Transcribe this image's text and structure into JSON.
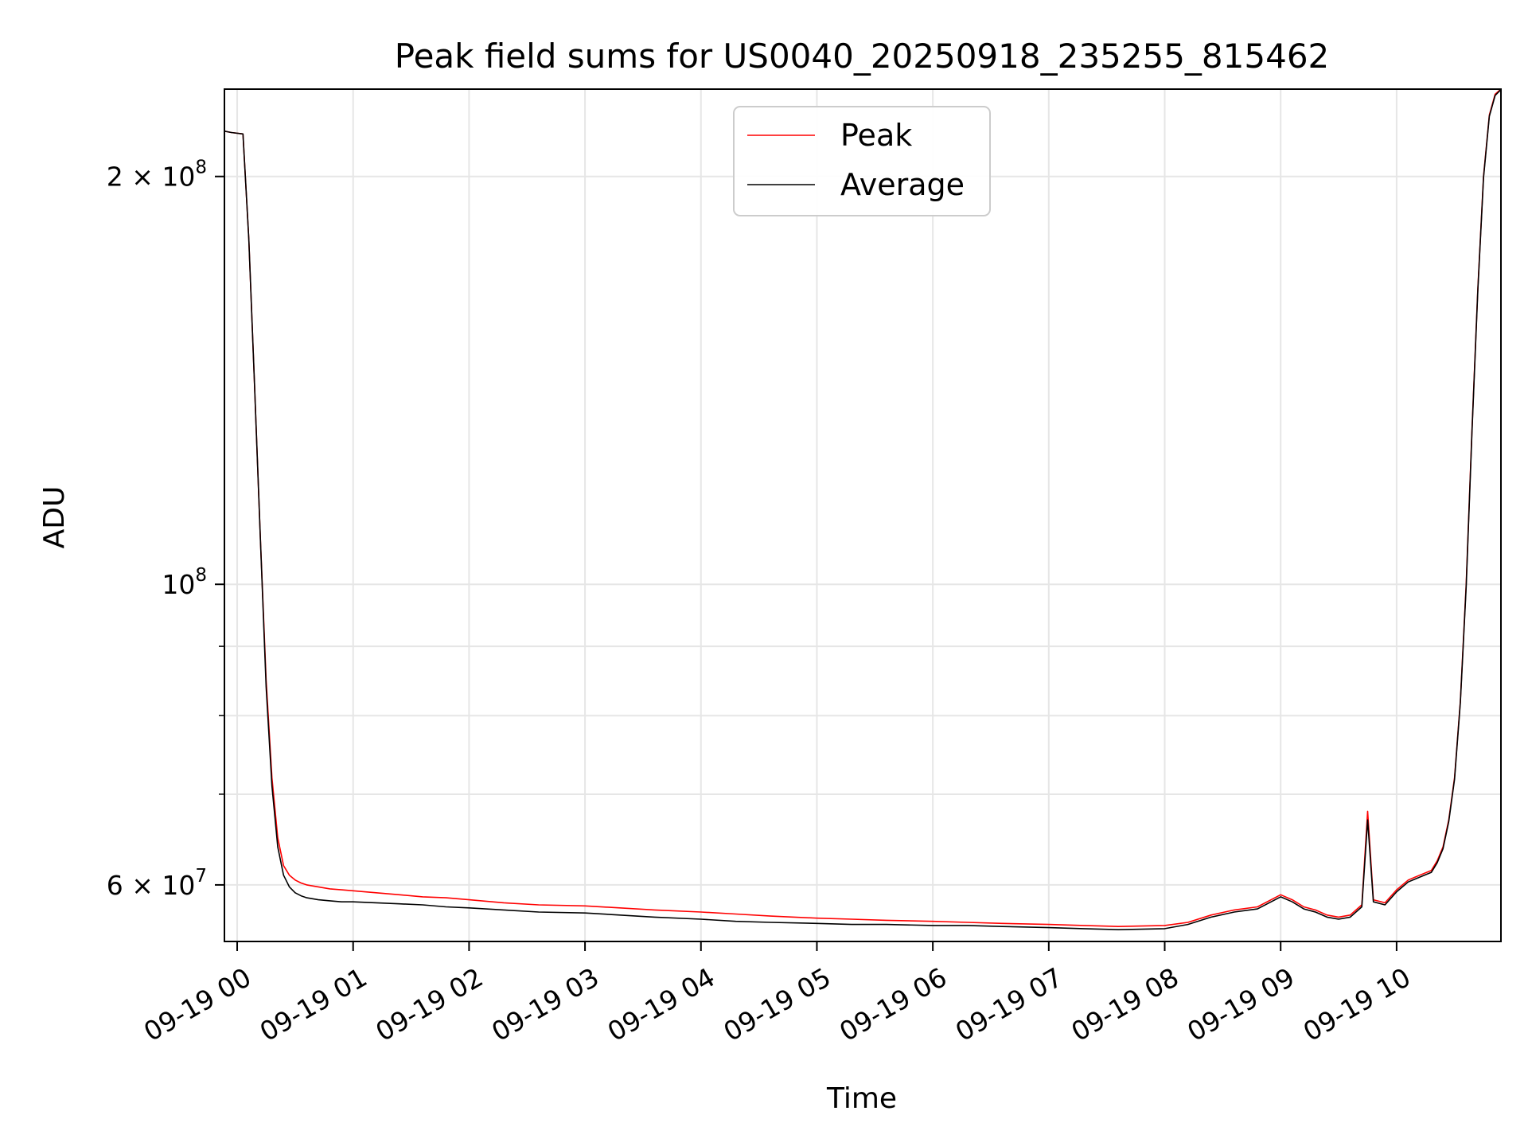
{
  "chart_data": {
    "type": "line",
    "title": "Peak field sums for US0040_20250918_235255_815462",
    "xlabel": "Time",
    "ylabel": "ADU",
    "yscale": "log",
    "ylim": [
      54500000,
      232000000
    ],
    "xlim": [
      -0.11,
      10.9
    ],
    "grid": true,
    "legend_position": "top-center",
    "x_ticks": [
      {
        "value": 0,
        "label": "09-19 00"
      },
      {
        "value": 1,
        "label": "09-19 01"
      },
      {
        "value": 2,
        "label": "09-19 02"
      },
      {
        "value": 3,
        "label": "09-19 03"
      },
      {
        "value": 4,
        "label": "09-19 04"
      },
      {
        "value": 5,
        "label": "09-19 05"
      },
      {
        "value": 6,
        "label": "09-19 06"
      },
      {
        "value": 7,
        "label": "09-19 07"
      },
      {
        "value": 8,
        "label": "09-19 08"
      },
      {
        "value": 9,
        "label": "09-19 09"
      },
      {
        "value": 10,
        "label": "09-19 10"
      }
    ],
    "y_major_ticks": [
      {
        "value": 60000000,
        "base": "6 × 10",
        "exp": "7"
      },
      {
        "value": 100000000,
        "base": "10",
        "exp": "8"
      },
      {
        "value": 200000000,
        "base": "2 × 10",
        "exp": "8"
      }
    ],
    "y_minor_ticks": [
      70000000,
      80000000,
      90000000
    ],
    "series": [
      {
        "name": "Peak",
        "color": "#ff0000",
        "x": [
          -0.11,
          -0.05,
          0.05,
          0.1,
          0.15,
          0.2,
          0.25,
          0.3,
          0.35,
          0.4,
          0.45,
          0.5,
          0.55,
          0.6,
          0.7,
          0.8,
          0.9,
          1.0,
          1.2,
          1.4,
          1.6,
          1.8,
          2.0,
          2.3,
          2.6,
          3.0,
          3.3,
          3.6,
          4.0,
          4.3,
          4.6,
          5.0,
          5.3,
          5.6,
          6.0,
          6.3,
          6.6,
          7.0,
          7.3,
          7.6,
          8.0,
          8.2,
          8.4,
          8.6,
          8.8,
          9.0,
          9.1,
          9.2,
          9.3,
          9.4,
          9.5,
          9.6,
          9.7,
          9.75,
          9.8,
          9.9,
          10.0,
          10.1,
          10.2,
          10.3,
          10.35,
          10.4,
          10.45,
          10.5,
          10.55,
          10.6,
          10.65,
          10.7,
          10.75,
          10.8,
          10.85,
          10.9
        ],
        "y": [
          216000000,
          215500000,
          215000000,
          180000000,
          140000000,
          108000000,
          85000000,
          72000000,
          65000000,
          62000000,
          61000000,
          60500000,
          60200000,
          60000000,
          59800000,
          59600000,
          59500000,
          59400000,
          59200000,
          59000000,
          58800000,
          58700000,
          58500000,
          58200000,
          58000000,
          57900000,
          57700000,
          57500000,
          57300000,
          57100000,
          56900000,
          56700000,
          56600000,
          56500000,
          56400000,
          56300000,
          56200000,
          56100000,
          56000000,
          55900000,
          56000000,
          56300000,
          57000000,
          57500000,
          57800000,
          59000000,
          58500000,
          57800000,
          57500000,
          57000000,
          56800000,
          57000000,
          58000000,
          68000000,
          58500000,
          58200000,
          59500000,
          60500000,
          61000000,
          61500000,
          62500000,
          64000000,
          67000000,
          72000000,
          82000000,
          100000000,
          130000000,
          165000000,
          200000000,
          222000000,
          230000000,
          232000000
        ]
      },
      {
        "name": "Average",
        "color": "#000000",
        "x": [
          -0.11,
          -0.05,
          0.05,
          0.1,
          0.15,
          0.2,
          0.25,
          0.3,
          0.35,
          0.4,
          0.45,
          0.5,
          0.55,
          0.6,
          0.7,
          0.8,
          0.9,
          1.0,
          1.2,
          1.4,
          1.6,
          1.8,
          2.0,
          2.3,
          2.6,
          3.0,
          3.3,
          3.6,
          4.0,
          4.3,
          4.6,
          5.0,
          5.3,
          5.6,
          6.0,
          6.3,
          6.6,
          7.0,
          7.3,
          7.6,
          8.0,
          8.2,
          8.4,
          8.6,
          8.8,
          9.0,
          9.1,
          9.2,
          9.3,
          9.4,
          9.5,
          9.6,
          9.7,
          9.75,
          9.8,
          9.9,
          10.0,
          10.1,
          10.2,
          10.3,
          10.35,
          10.4,
          10.45,
          10.5,
          10.55,
          10.6,
          10.65,
          10.7,
          10.75,
          10.8,
          10.85,
          10.9
        ],
        "y": [
          216000000,
          215500000,
          215000000,
          180000000,
          140000000,
          108000000,
          84000000,
          71000000,
          64000000,
          61000000,
          59800000,
          59200000,
          58900000,
          58700000,
          58500000,
          58400000,
          58300000,
          58300000,
          58200000,
          58100000,
          58000000,
          57800000,
          57700000,
          57500000,
          57300000,
          57200000,
          57000000,
          56800000,
          56600000,
          56400000,
          56300000,
          56200000,
          56100000,
          56100000,
          56000000,
          56000000,
          55900000,
          55800000,
          55700000,
          55600000,
          55700000,
          56100000,
          56800000,
          57300000,
          57600000,
          58800000,
          58300000,
          57600000,
          57300000,
          56800000,
          56600000,
          56800000,
          57800000,
          67000000,
          58300000,
          58000000,
          59300000,
          60300000,
          60800000,
          61300000,
          62300000,
          63800000,
          66800000,
          71800000,
          81800000,
          99500000,
          129500000,
          164500000,
          199500000,
          221500000,
          229500000,
          231800000
        ]
      }
    ]
  }
}
